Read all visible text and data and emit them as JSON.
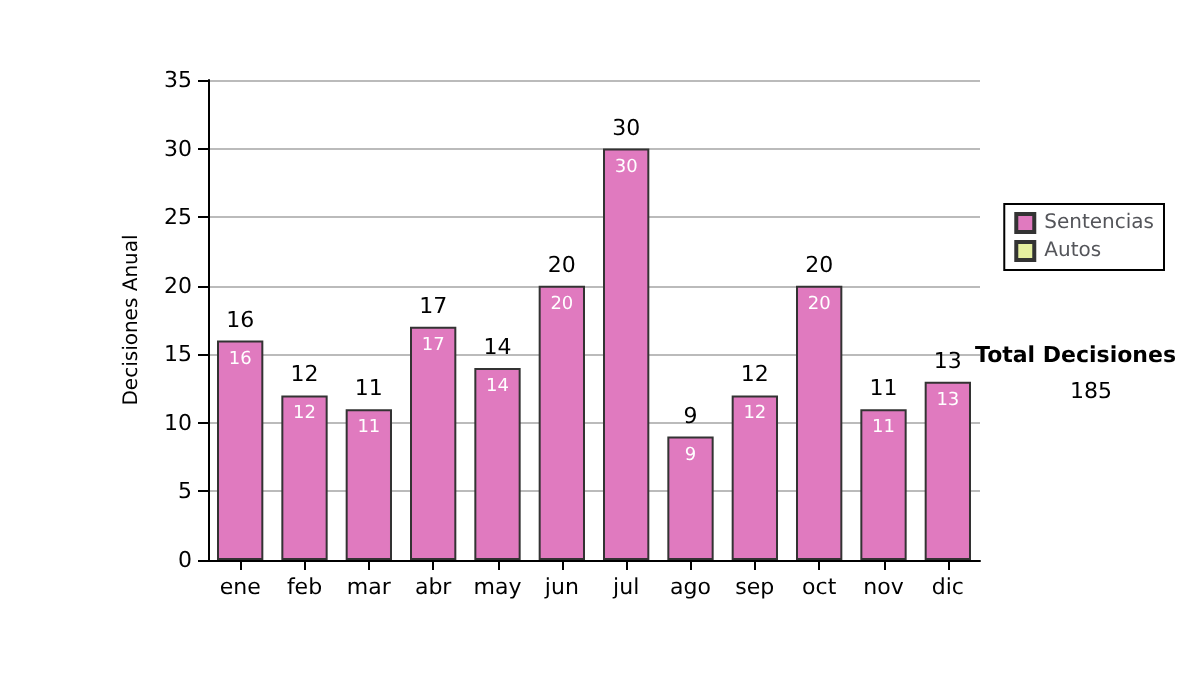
{
  "chart_data": {
    "type": "bar",
    "ylabel": "Decisiones Anual",
    "categories": [
      "ene",
      "feb",
      "mar",
      "abr",
      "may",
      "jun",
      "jul",
      "ago",
      "sep",
      "oct",
      "nov",
      "dic"
    ],
    "series": [
      {
        "name": "Sentencias",
        "color": "#e07abf",
        "values": [
          16,
          12,
          11,
          17,
          14,
          20,
          30,
          9,
          12,
          20,
          11,
          13
        ],
        "value_labels": [
          "16",
          "12",
          "11",
          "17",
          "14",
          "20",
          "30",
          "9",
          "12",
          "20",
          "11",
          "13"
        ]
      },
      {
        "name": "Autos",
        "color": "#e6f0a0",
        "values": [
          0,
          0,
          0,
          0,
          0,
          0,
          0,
          0,
          0,
          0,
          0,
          0
        ]
      }
    ],
    "stacked": true,
    "totals": [
      "16",
      "12",
      "11",
      "17",
      "14",
      "20",
      "30",
      "9",
      "12",
      "20",
      "11",
      "13"
    ],
    "ylim": [
      0,
      35
    ],
    "yticks": [
      0,
      5,
      10,
      15,
      20,
      25,
      30,
      35
    ],
    "grid": "y",
    "legend": "right",
    "annotations": [
      "Total Decisiones",
      "185"
    ]
  }
}
